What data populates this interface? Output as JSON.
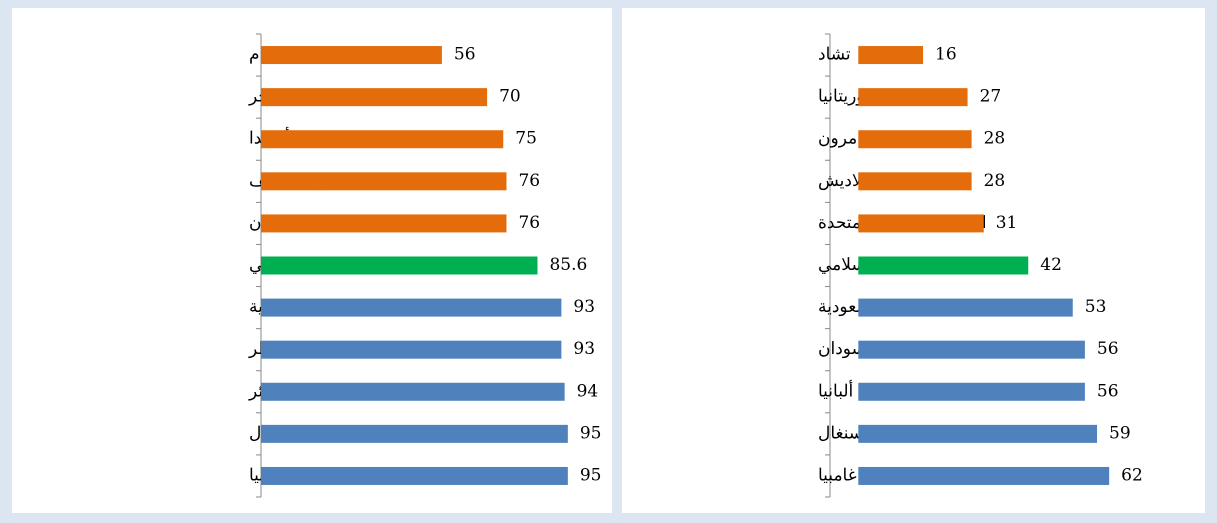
{
  "chart_data": [
    {
      "type": "bar",
      "orientation": "horizontal",
      "categories": [
        "سورينام",
        "النيجر",
        "أوغندا",
        "جزر المالديف",
        "جمهورية قرغيزستان",
        "منظمة التعاون الإسلامي",
        "المملكة العربية السعودية",
        "قطر",
        "الجزائر",
        "السنغال",
        "ليبيا"
      ],
      "values": [
        56,
        70,
        75,
        76,
        76,
        85.6,
        93,
        93,
        94,
        95,
        95
      ],
      "colors": [
        "#e46c0a",
        "#e46c0a",
        "#e46c0a",
        "#e46c0a",
        "#e46c0a",
        "#00b050",
        "#4f81bd",
        "#4f81bd",
        "#4f81bd",
        "#4f81bd",
        "#4f81bd"
      ],
      "xlim": [
        0,
        100
      ]
    },
    {
      "type": "bar",
      "orientation": "horizontal",
      "categories": [
        "تشاد",
        "موريتانيا",
        "الكامرون",
        "بنغلاديش",
        "الإمارات العربية المتحدة",
        "منظمة التعاون الإسلامي",
        "المملكة العربية السعودية",
        "السودان",
        "ألبانيا",
        "السنغال",
        "غامبيا"
      ],
      "values": [
        16,
        27,
        28,
        28,
        31,
        42,
        53,
        56,
        56,
        59,
        62
      ],
      "colors": [
        "#e46c0a",
        "#e46c0a",
        "#e46c0a",
        "#e46c0a",
        "#e46c0a",
        "#00b050",
        "#4f81bd",
        "#4f81bd",
        "#4f81bd",
        "#4f81bd",
        "#4f81bd"
      ],
      "xlim": [
        -7,
        80
      ]
    }
  ]
}
